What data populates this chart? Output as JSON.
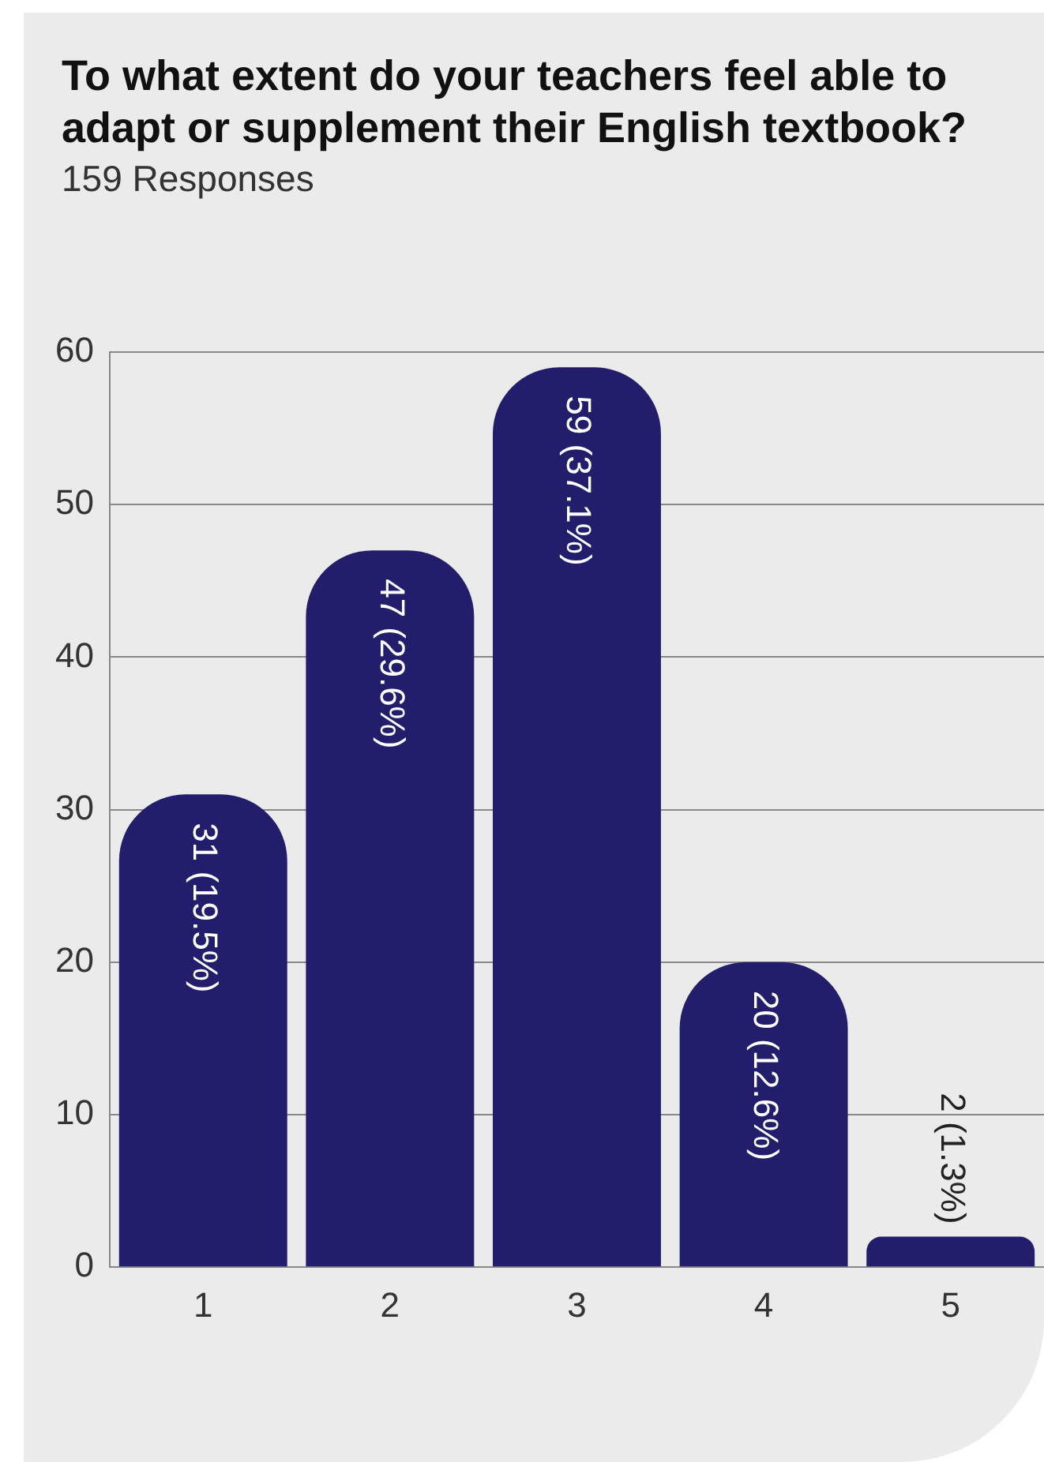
{
  "chart_data": {
    "type": "bar",
    "title": "To what extent do your teachers feel able to adapt or supplement their English textbook?",
    "subtitle": "159 Responses",
    "categories": [
      "1",
      "2",
      "3",
      "4",
      "5"
    ],
    "values": [
      31,
      47,
      59,
      20,
      2
    ],
    "value_labels": [
      "31 (19.5%)",
      "47 (29.6%)",
      "59 (37.1%)",
      "20 (12.6%)",
      "2 (1.3%)"
    ],
    "color": "#221e6b",
    "ylim": [
      0,
      60
    ],
    "yticks": [
      0,
      10,
      20,
      30,
      40,
      50,
      60
    ],
    "grid": "y",
    "legend": false
  }
}
